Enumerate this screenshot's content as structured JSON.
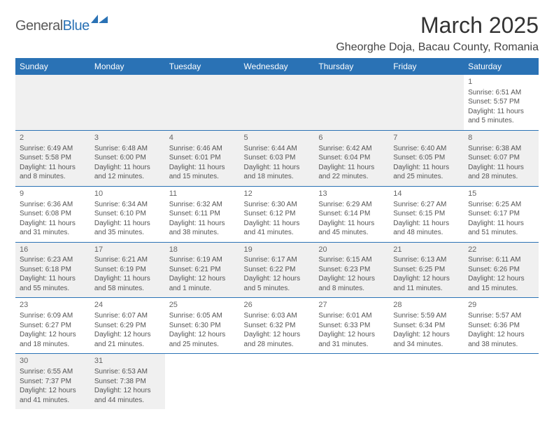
{
  "logo": {
    "part1": "General",
    "part2": "Blue"
  },
  "title": "March 2025",
  "location": "Gheorghe Doja, Bacau County, Romania",
  "colors": {
    "header_bg": "#2a72b5",
    "header_text": "#ffffff",
    "border": "#2a72b5",
    "shaded_bg": "#f0f0f0",
    "body_text": "#555555",
    "daynum_text": "#666666",
    "logo_gray": "#5a5a5a",
    "logo_blue": "#2a72b5"
  },
  "day_headers": [
    "Sunday",
    "Monday",
    "Tuesday",
    "Wednesday",
    "Thursday",
    "Friday",
    "Saturday"
  ],
  "weeks": [
    [
      {
        "blank": true,
        "shaded": true
      },
      {
        "blank": true,
        "shaded": true
      },
      {
        "blank": true,
        "shaded": true
      },
      {
        "blank": true,
        "shaded": true
      },
      {
        "blank": true,
        "shaded": true
      },
      {
        "blank": true,
        "shaded": true
      },
      {
        "day": 1,
        "sunrise": "Sunrise: 6:51 AM",
        "sunset": "Sunset: 5:57 PM",
        "daylight": "Daylight: 11 hours and 5 minutes."
      }
    ],
    [
      {
        "day": 2,
        "shaded": true,
        "sunrise": "Sunrise: 6:49 AM",
        "sunset": "Sunset: 5:58 PM",
        "daylight": "Daylight: 11 hours and 8 minutes."
      },
      {
        "day": 3,
        "shaded": true,
        "sunrise": "Sunrise: 6:48 AM",
        "sunset": "Sunset: 6:00 PM",
        "daylight": "Daylight: 11 hours and 12 minutes."
      },
      {
        "day": 4,
        "shaded": true,
        "sunrise": "Sunrise: 6:46 AM",
        "sunset": "Sunset: 6:01 PM",
        "daylight": "Daylight: 11 hours and 15 minutes."
      },
      {
        "day": 5,
        "shaded": true,
        "sunrise": "Sunrise: 6:44 AM",
        "sunset": "Sunset: 6:03 PM",
        "daylight": "Daylight: 11 hours and 18 minutes."
      },
      {
        "day": 6,
        "shaded": true,
        "sunrise": "Sunrise: 6:42 AM",
        "sunset": "Sunset: 6:04 PM",
        "daylight": "Daylight: 11 hours and 22 minutes."
      },
      {
        "day": 7,
        "shaded": true,
        "sunrise": "Sunrise: 6:40 AM",
        "sunset": "Sunset: 6:05 PM",
        "daylight": "Daylight: 11 hours and 25 minutes."
      },
      {
        "day": 8,
        "shaded": true,
        "sunrise": "Sunrise: 6:38 AM",
        "sunset": "Sunset: 6:07 PM",
        "daylight": "Daylight: 11 hours and 28 minutes."
      }
    ],
    [
      {
        "day": 9,
        "sunrise": "Sunrise: 6:36 AM",
        "sunset": "Sunset: 6:08 PM",
        "daylight": "Daylight: 11 hours and 31 minutes."
      },
      {
        "day": 10,
        "sunrise": "Sunrise: 6:34 AM",
        "sunset": "Sunset: 6:10 PM",
        "daylight": "Daylight: 11 hours and 35 minutes."
      },
      {
        "day": 11,
        "sunrise": "Sunrise: 6:32 AM",
        "sunset": "Sunset: 6:11 PM",
        "daylight": "Daylight: 11 hours and 38 minutes."
      },
      {
        "day": 12,
        "sunrise": "Sunrise: 6:30 AM",
        "sunset": "Sunset: 6:12 PM",
        "daylight": "Daylight: 11 hours and 41 minutes."
      },
      {
        "day": 13,
        "sunrise": "Sunrise: 6:29 AM",
        "sunset": "Sunset: 6:14 PM",
        "daylight": "Daylight: 11 hours and 45 minutes."
      },
      {
        "day": 14,
        "sunrise": "Sunrise: 6:27 AM",
        "sunset": "Sunset: 6:15 PM",
        "daylight": "Daylight: 11 hours and 48 minutes."
      },
      {
        "day": 15,
        "sunrise": "Sunrise: 6:25 AM",
        "sunset": "Sunset: 6:17 PM",
        "daylight": "Daylight: 11 hours and 51 minutes."
      }
    ],
    [
      {
        "day": 16,
        "shaded": true,
        "sunrise": "Sunrise: 6:23 AM",
        "sunset": "Sunset: 6:18 PM",
        "daylight": "Daylight: 11 hours and 55 minutes."
      },
      {
        "day": 17,
        "shaded": true,
        "sunrise": "Sunrise: 6:21 AM",
        "sunset": "Sunset: 6:19 PM",
        "daylight": "Daylight: 11 hours and 58 minutes."
      },
      {
        "day": 18,
        "shaded": true,
        "sunrise": "Sunrise: 6:19 AM",
        "sunset": "Sunset: 6:21 PM",
        "daylight": "Daylight: 12 hours and 1 minute."
      },
      {
        "day": 19,
        "shaded": true,
        "sunrise": "Sunrise: 6:17 AM",
        "sunset": "Sunset: 6:22 PM",
        "daylight": "Daylight: 12 hours and 5 minutes."
      },
      {
        "day": 20,
        "shaded": true,
        "sunrise": "Sunrise: 6:15 AM",
        "sunset": "Sunset: 6:23 PM",
        "daylight": "Daylight: 12 hours and 8 minutes."
      },
      {
        "day": 21,
        "shaded": true,
        "sunrise": "Sunrise: 6:13 AM",
        "sunset": "Sunset: 6:25 PM",
        "daylight": "Daylight: 12 hours and 11 minutes."
      },
      {
        "day": 22,
        "shaded": true,
        "sunrise": "Sunrise: 6:11 AM",
        "sunset": "Sunset: 6:26 PM",
        "daylight": "Daylight: 12 hours and 15 minutes."
      }
    ],
    [
      {
        "day": 23,
        "sunrise": "Sunrise: 6:09 AM",
        "sunset": "Sunset: 6:27 PM",
        "daylight": "Daylight: 12 hours and 18 minutes."
      },
      {
        "day": 24,
        "sunrise": "Sunrise: 6:07 AM",
        "sunset": "Sunset: 6:29 PM",
        "daylight": "Daylight: 12 hours and 21 minutes."
      },
      {
        "day": 25,
        "sunrise": "Sunrise: 6:05 AM",
        "sunset": "Sunset: 6:30 PM",
        "daylight": "Daylight: 12 hours and 25 minutes."
      },
      {
        "day": 26,
        "sunrise": "Sunrise: 6:03 AM",
        "sunset": "Sunset: 6:32 PM",
        "daylight": "Daylight: 12 hours and 28 minutes."
      },
      {
        "day": 27,
        "sunrise": "Sunrise: 6:01 AM",
        "sunset": "Sunset: 6:33 PM",
        "daylight": "Daylight: 12 hours and 31 minutes."
      },
      {
        "day": 28,
        "sunrise": "Sunrise: 5:59 AM",
        "sunset": "Sunset: 6:34 PM",
        "daylight": "Daylight: 12 hours and 34 minutes."
      },
      {
        "day": 29,
        "sunrise": "Sunrise: 5:57 AM",
        "sunset": "Sunset: 6:36 PM",
        "daylight": "Daylight: 12 hours and 38 minutes."
      }
    ],
    [
      {
        "day": 30,
        "shaded": true,
        "sunrise": "Sunrise: 6:55 AM",
        "sunset": "Sunset: 7:37 PM",
        "daylight": "Daylight: 12 hours and 41 minutes."
      },
      {
        "day": 31,
        "shaded": true,
        "sunrise": "Sunrise: 6:53 AM",
        "sunset": "Sunset: 7:38 PM",
        "daylight": "Daylight: 12 hours and 44 minutes."
      },
      {
        "blank": true
      },
      {
        "blank": true
      },
      {
        "blank": true
      },
      {
        "blank": true
      },
      {
        "blank": true
      }
    ]
  ]
}
